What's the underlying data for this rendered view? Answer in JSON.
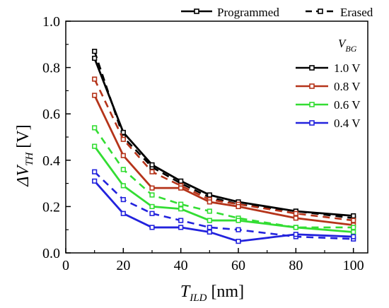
{
  "chart_data": {
    "type": "line",
    "title": "",
    "xlabel": {
      "main": "T",
      "subscript": "ILD",
      "unit": " [nm]"
    },
    "ylabel": {
      "main": "ΔV",
      "subscript": "TH",
      "unit": " [V]"
    },
    "xlim": [
      0,
      105
    ],
    "ylim": [
      0,
      1.0
    ],
    "xticks": [
      0,
      20,
      40,
      60,
      80,
      100
    ],
    "yticks": [
      0.0,
      0.2,
      0.4,
      0.6,
      0.8,
      1.0
    ],
    "xtick_labels": [
      "0",
      "20",
      "40",
      "60",
      "80",
      "100"
    ],
    "ytick_labels": [
      "0.0",
      "0.2",
      "0.4",
      "0.6",
      "0.8",
      "1.0"
    ],
    "grid": false,
    "x": [
      10,
      20,
      30,
      40,
      50,
      60,
      80,
      100
    ],
    "style_legend": {
      "programmed": "Programmed",
      "erased": "Erased",
      "placement": "top"
    },
    "vbg_legend": {
      "title_main": "V",
      "title_sub": "BG",
      "placement": "right"
    },
    "series": [
      {
        "name": "1.0 V",
        "color": "#000000",
        "programmed": [
          0.84,
          0.52,
          0.38,
          0.31,
          0.25,
          0.22,
          0.18,
          0.16
        ],
        "erased": [
          0.87,
          0.5,
          0.37,
          0.3,
          0.24,
          0.21,
          0.18,
          0.15
        ]
      },
      {
        "name": "0.8 V",
        "color": "#b5341a",
        "programmed": [
          0.68,
          0.42,
          0.28,
          0.28,
          0.22,
          0.2,
          0.15,
          0.12
        ],
        "erased": [
          0.75,
          0.49,
          0.35,
          0.29,
          0.23,
          0.21,
          0.17,
          0.14
        ]
      },
      {
        "name": "0.6 V",
        "color": "#33dd33",
        "programmed": [
          0.46,
          0.29,
          0.2,
          0.19,
          0.14,
          0.14,
          0.11,
          0.09
        ],
        "erased": [
          0.54,
          0.36,
          0.25,
          0.21,
          0.18,
          0.15,
          0.11,
          0.11
        ]
      },
      {
        "name": "0.4 V",
        "color": "#2222dd",
        "programmed": [
          0.31,
          0.17,
          0.11,
          0.11,
          0.09,
          0.05,
          0.08,
          0.07
        ],
        "erased": [
          0.35,
          0.23,
          0.17,
          0.14,
          0.11,
          0.1,
          0.07,
          0.06
        ]
      }
    ]
  }
}
